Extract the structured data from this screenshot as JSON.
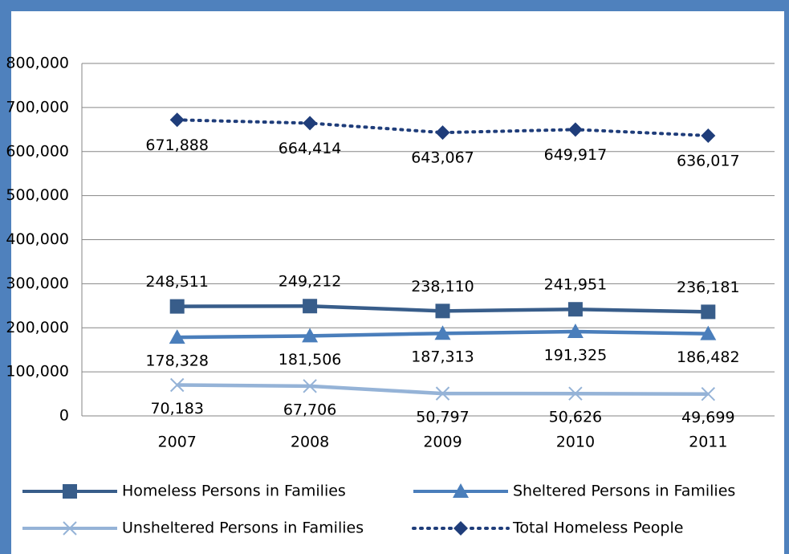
{
  "chart_data": {
    "type": "line",
    "categories": [
      "2007",
      "2008",
      "2009",
      "2010",
      "2011"
    ],
    "series": [
      {
        "name": "Homeless Persons in Families",
        "color": "#385d8a",
        "marker": "square",
        "values": [
          248511,
          249212,
          238110,
          241951,
          236181
        ],
        "value_labels": [
          "248,511",
          "249,212",
          "238,110",
          "241,951",
          "236,181"
        ]
      },
      {
        "name": "Sheltered Persons in Families",
        "color": "#4a7ebb",
        "marker": "triangle",
        "values": [
          178328,
          181506,
          187313,
          191325,
          186482
        ],
        "value_labels": [
          "178,328",
          "181,506",
          "187,313",
          "191,325",
          "186,482"
        ]
      },
      {
        "name": "Unsheltered Persons in Families",
        "color": "#95b3d7",
        "marker": "x",
        "values": [
          70183,
          67706,
          50797,
          50626,
          49699
        ],
        "value_labels": [
          "70,183",
          "67,706",
          "50,797",
          "50,626",
          "49,699"
        ]
      },
      {
        "name": "Total Homeless People",
        "color": "#1f3d7a",
        "marker": "diamond",
        "dash": "dotted",
        "values": [
          671888,
          664414,
          643067,
          649917,
          636017
        ],
        "value_labels": [
          "671,888",
          "664,414",
          "643,067",
          "649,917",
          "636,017"
        ]
      }
    ],
    "ylim": [
      0,
      800000
    ],
    "yticks": [
      0,
      {
        "value": 100000,
        "label": "100,000"
      },
      {
        "value": 200000,
        "label": "200,000"
      },
      {
        "value": 300000,
        "label": "300,000"
      },
      {
        "value": 400000,
        "label": "400,000"
      },
      {
        "value": 500000,
        "label": "500,000"
      },
      {
        "value": 600000,
        "label": "600,000"
      },
      {
        "value": 700000,
        "label": "700,000"
      },
      {
        "value": 800000,
        "label": "800,000"
      }
    ],
    "grid": true
  }
}
